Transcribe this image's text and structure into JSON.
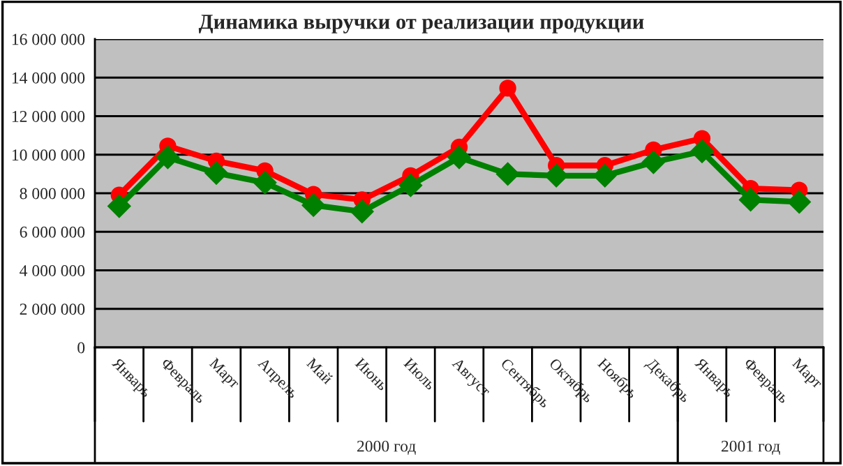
{
  "chart_data": {
    "type": "line",
    "title": "Динамика выручки от реализации продукции",
    "categories": [
      "Январь",
      "Февраль",
      "Март",
      "Апрель",
      "Май",
      "Июнь",
      "Июль",
      "Август",
      "Сентябрь",
      "Октябрь",
      "Ноябрь",
      "Декабрь",
      "Январь",
      "Февраль",
      "Март"
    ],
    "series": [
      {
        "color": "#ff0000",
        "marker": "circle",
        "values": [
          7900000,
          10450000,
          9670000,
          9160000,
          7940000,
          7660000,
          8910000,
          10390000,
          13450000,
          9440000,
          9440000,
          10250000,
          10840000,
          8250000,
          8160000
        ]
      },
      {
        "color": "#008000",
        "marker": "diamond",
        "values": [
          7330000,
          9860000,
          9050000,
          8550000,
          7380000,
          7050000,
          8410000,
          9860000,
          9000000,
          8910000,
          8910000,
          9610000,
          10170000,
          7660000,
          7550000
        ]
      }
    ],
    "ylim": [
      0,
      16000000
    ],
    "yticks": [
      {
        "value": 0,
        "label": "0"
      },
      {
        "value": 2000000,
        "label": "2 000 000"
      },
      {
        "value": 4000000,
        "label": "4 000 000"
      },
      {
        "value": 6000000,
        "label": "6 000 000"
      },
      {
        "value": 8000000,
        "label": "8 000 000"
      },
      {
        "value": 10000000,
        "label": "10 000 000"
      },
      {
        "value": 12000000,
        "label": "12 000 000"
      },
      {
        "value": 14000000,
        "label": "14 000 000"
      },
      {
        "value": 16000000,
        "label": "16 000 000"
      }
    ],
    "grid": "y",
    "legend": false,
    "annotations": [
      "2000 год",
      "2001 год"
    ]
  }
}
